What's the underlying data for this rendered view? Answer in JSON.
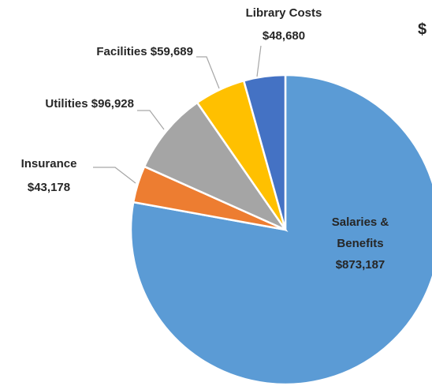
{
  "chart_data": {
    "type": "pie",
    "title": "$",
    "categories": [
      "Salaries & Benefits",
      "Insurance",
      "Utilities",
      "Facilities",
      "Library Costs"
    ],
    "values": [
      873187,
      43178,
      96928,
      59689,
      48680
    ],
    "value_labels": [
      "$873,187",
      "$43,178",
      "$96,928",
      "$59,689",
      "$48,680"
    ],
    "colors": [
      "#5b9bd5",
      "#ed7d31",
      "#a5a5a5",
      "#ffc000",
      "#4472c4"
    ]
  }
}
